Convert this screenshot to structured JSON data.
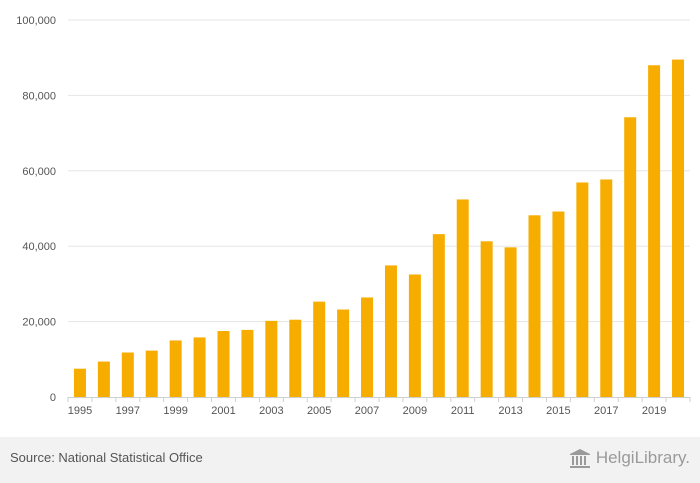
{
  "chart_data": {
    "type": "bar",
    "title": "",
    "xlabel": "",
    "ylabel": "",
    "categories": [
      "1995",
      "1996",
      "1997",
      "1998",
      "1999",
      "2000",
      "2001",
      "2002",
      "2003",
      "2004",
      "2005",
      "2006",
      "2007",
      "2008",
      "2009",
      "2010",
      "2011",
      "2012",
      "2013",
      "2014",
      "2015",
      "2016",
      "2017",
      "2018",
      "2019",
      "2020"
    ],
    "values": [
      7500,
      9400,
      11800,
      12300,
      15000,
      15800,
      17500,
      17800,
      20200,
      20500,
      25300,
      23200,
      26400,
      34900,
      32500,
      43200,
      52400,
      41300,
      39700,
      48200,
      49200,
      56900,
      57700,
      74200,
      88000,
      89500
    ],
    "ylim": [
      0,
      100000
    ],
    "yticks": [
      0,
      20000,
      40000,
      60000,
      80000,
      100000
    ],
    "ytick_labels": [
      "0",
      "20,000",
      "40,000",
      "60,000",
      "80,000",
      "100,000"
    ],
    "xtick_labels": [
      "1995",
      "1997",
      "1999",
      "2001",
      "2003",
      "2005",
      "2007",
      "2009",
      "2011",
      "2013",
      "2015",
      "2017",
      "2019"
    ],
    "grid": true,
    "bar_color": "#f7ad00",
    "grid_color": "#e6e6e6"
  },
  "footer": {
    "source": "Source: National Statistical Office",
    "logo_text": "HelgiLibrary."
  }
}
